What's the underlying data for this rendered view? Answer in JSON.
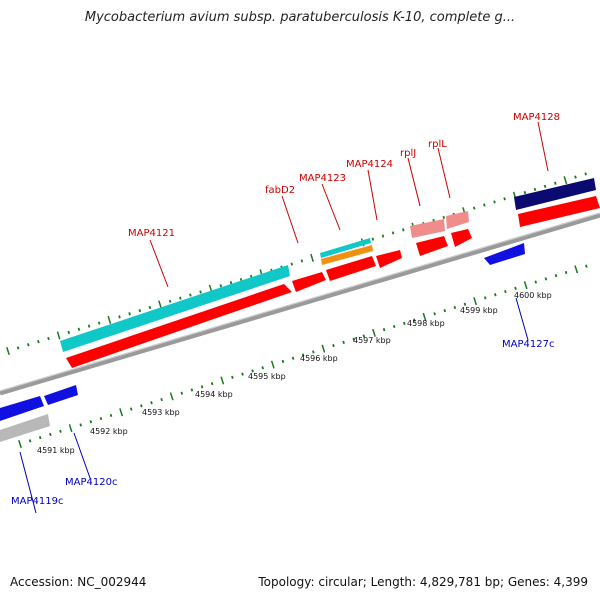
{
  "title": "Mycobacterium avium subsp. paratuberculosis K-10, complete g...",
  "footer": {
    "accession": "Accession: NC_002944",
    "summary": "Topology: circular; Length: 4,829,781 bp; Genes: 4,399"
  },
  "colors": {
    "red": "#ff0000",
    "cyan": "#10c8c8",
    "blue": "#1010e0",
    "navy": "#0a0a70",
    "orange": "#f09010",
    "pink": "#f08c8c",
    "gray": "#b8b8b8",
    "backbone": "#9a9a9a",
    "tick": "#1a7a1a",
    "label_red": "#cc0000",
    "label_blue": "#0000bb"
  },
  "scale_labels": [
    "4591 kbp",
    "4592 kbp",
    "4593 kbp",
    "4594 kbp",
    "4595 kbp",
    "4596 kbp",
    "4597 kbp",
    "4598 kbp",
    "4599 kbp",
    "4600 kbp"
  ],
  "gene_labels": [
    {
      "name": "MAP4119c",
      "strand": "reverse"
    },
    {
      "name": "MAP4120c",
      "strand": "reverse"
    },
    {
      "name": "MAP4121",
      "strand": "forward"
    },
    {
      "name": "fabD2",
      "strand": "forward"
    },
    {
      "name": "MAP4123",
      "strand": "forward"
    },
    {
      "name": "MAP4124",
      "strand": "forward"
    },
    {
      "name": "rplJ",
      "strand": "forward"
    },
    {
      "name": "rplL",
      "strand": "forward"
    },
    {
      "name": "MAP4127c",
      "strand": "reverse"
    },
    {
      "name": "MAP4128",
      "strand": "forward"
    }
  ]
}
